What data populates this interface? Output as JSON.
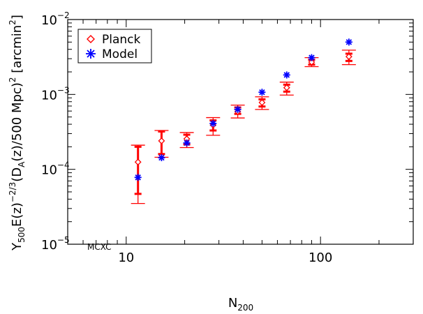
{
  "chart_data": {
    "type": "scatter",
    "x_scale": "log",
    "y_scale": "log",
    "xlim": [
      5,
      300
    ],
    "ylim": [
      1e-05,
      0.01
    ],
    "x_ticks": [
      {
        "value": 10,
        "label": "10"
      },
      {
        "value": 100,
        "label": "100"
      }
    ],
    "y_ticks": [
      {
        "value": 1e-05,
        "base": "10",
        "exp": "−5"
      },
      {
        "value": 0.0001,
        "base": "10",
        "exp": "−4"
      },
      {
        "value": 0.001,
        "base": "10",
        "exp": "−3"
      },
      {
        "value": 0.01,
        "base": "10",
        "exp": "−2"
      }
    ],
    "xlabel": {
      "main": "N",
      "sub": "200"
    },
    "ylabel": {
      "y": "Y",
      "y_sub": "500",
      "e": "E(z)",
      "e_sup": "−2/3",
      "d_open": "(D",
      "d_sub": "A",
      "d_rest": "(z)/500 Mpc)",
      "d_sup": "2",
      "unit_open": " [arcmin",
      "unit_sup": "2",
      "unit_close": "]"
    },
    "legend": {
      "position": "top-left",
      "entries": [
        {
          "label": "Planck",
          "symbol": "diamond",
          "color": "#ff0000"
        },
        {
          "label": "Model",
          "symbol": "asterisk",
          "color": "#0000ff"
        }
      ]
    },
    "annotation": "MCXC",
    "series": [
      {
        "name": "Planck",
        "color": "#ff0000",
        "points": [
          {
            "x": 11.5,
            "y": 0.000125,
            "err_outer": [
              3.5e-05,
              0.00021
            ],
            "err_inner": [
              4.7e-05,
              0.0002
            ]
          },
          {
            "x": 15.2,
            "y": 0.00024,
            "err_outer": [
              0.000145,
              0.00033
            ],
            "err_inner": [
              0.00016,
              0.00032
            ]
          },
          {
            "x": 20.5,
            "y": 0.000255,
            "err_outer": [
              0.000195,
              0.00031
            ],
            "err_inner": [
              0.000215,
              0.00029
            ]
          },
          {
            "x": 28.0,
            "y": 0.00039,
            "err_outer": [
              0.000285,
              0.00049
            ],
            "err_inner": [
              0.00033,
              0.00045
            ]
          },
          {
            "x": 37.5,
            "y": 0.00059,
            "err_outer": [
              0.000485,
              0.00072
            ],
            "err_inner": [
              0.00055,
              0.00067
            ]
          },
          {
            "x": 50.0,
            "y": 0.00078,
            "err_outer": [
              0.00063,
              0.00093
            ],
            "err_inner": [
              0.00069,
              0.00086
            ]
          },
          {
            "x": 67.0,
            "y": 0.00123,
            "err_outer": [
              0.00098,
              0.00146
            ],
            "err_inner": [
              0.00109,
              0.00135
            ]
          },
          {
            "x": 90.0,
            "y": 0.0027,
            "err_outer": [
              0.00235,
              0.0031
            ],
            "err_inner": [
              0.0025,
              0.0029
            ]
          },
          {
            "x": 140.0,
            "y": 0.0032,
            "err_outer": [
              0.0025,
              0.0039
            ],
            "err_inner": [
              0.0028,
              0.0035
            ]
          }
        ]
      },
      {
        "name": "Model",
        "color": "#0000ff",
        "points": [
          {
            "x": 11.5,
            "y": 7.8e-05
          },
          {
            "x": 15.2,
            "y": 0.000143
          },
          {
            "x": 20.5,
            "y": 0.000225
          },
          {
            "x": 28.0,
            "y": 0.00041
          },
          {
            "x": 37.5,
            "y": 0.00063
          },
          {
            "x": 50.0,
            "y": 0.00107
          },
          {
            "x": 67.0,
            "y": 0.00182
          },
          {
            "x": 90.0,
            "y": 0.0031
          },
          {
            "x": 140.0,
            "y": 0.005
          }
        ]
      }
    ]
  }
}
